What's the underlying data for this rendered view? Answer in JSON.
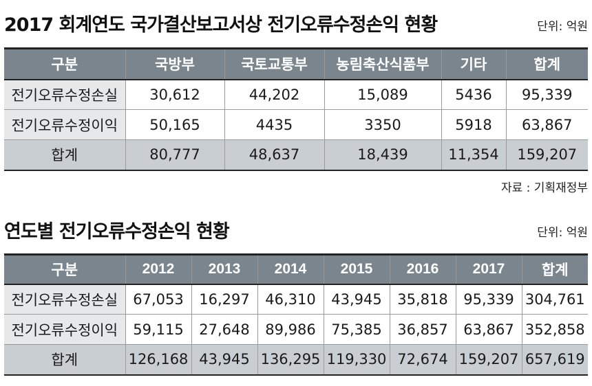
{
  "section1": {
    "title": "2017 회계연도 국가결산보고서상 전기오류수정손익 현황",
    "unit": "단위: 억원",
    "source": "자료 : 기획재정부",
    "headers": [
      "구분",
      "국방부",
      "국토교통부",
      "농림축산식품부",
      "기타",
      "합계"
    ],
    "rows": [
      [
        "전기오류수정손실",
        "30,612",
        "44,202",
        "15,089",
        "5436",
        "95,339"
      ],
      [
        "전기오류수정이익",
        "50,165",
        "4435",
        "3350",
        "5918",
        "63,867"
      ],
      [
        "합계",
        "80,777",
        "48,637",
        "18,439",
        "11,354",
        "159,207"
      ]
    ]
  },
  "section2": {
    "title": "연도별 전기오류수정손익 현황",
    "unit": "단위: 억원",
    "headers": [
      "구분",
      "2012",
      "2013",
      "2014",
      "2015",
      "2016",
      "2017",
      "합계"
    ],
    "rows": [
      [
        "전기오류수정손실",
        "67,053",
        "16,297",
        "46,310",
        "43,945",
        "35,818",
        "95,339",
        "304,761"
      ],
      [
        "전기오류수정이익",
        "59,115",
        "27,648",
        "89,986",
        "75,385",
        "36,857",
        "63,867",
        "352,858"
      ],
      [
        "합계",
        "126,168",
        "43,945",
        "136,295",
        "119,330",
        "72,674",
        "159,207",
        "657,619"
      ]
    ]
  }
}
